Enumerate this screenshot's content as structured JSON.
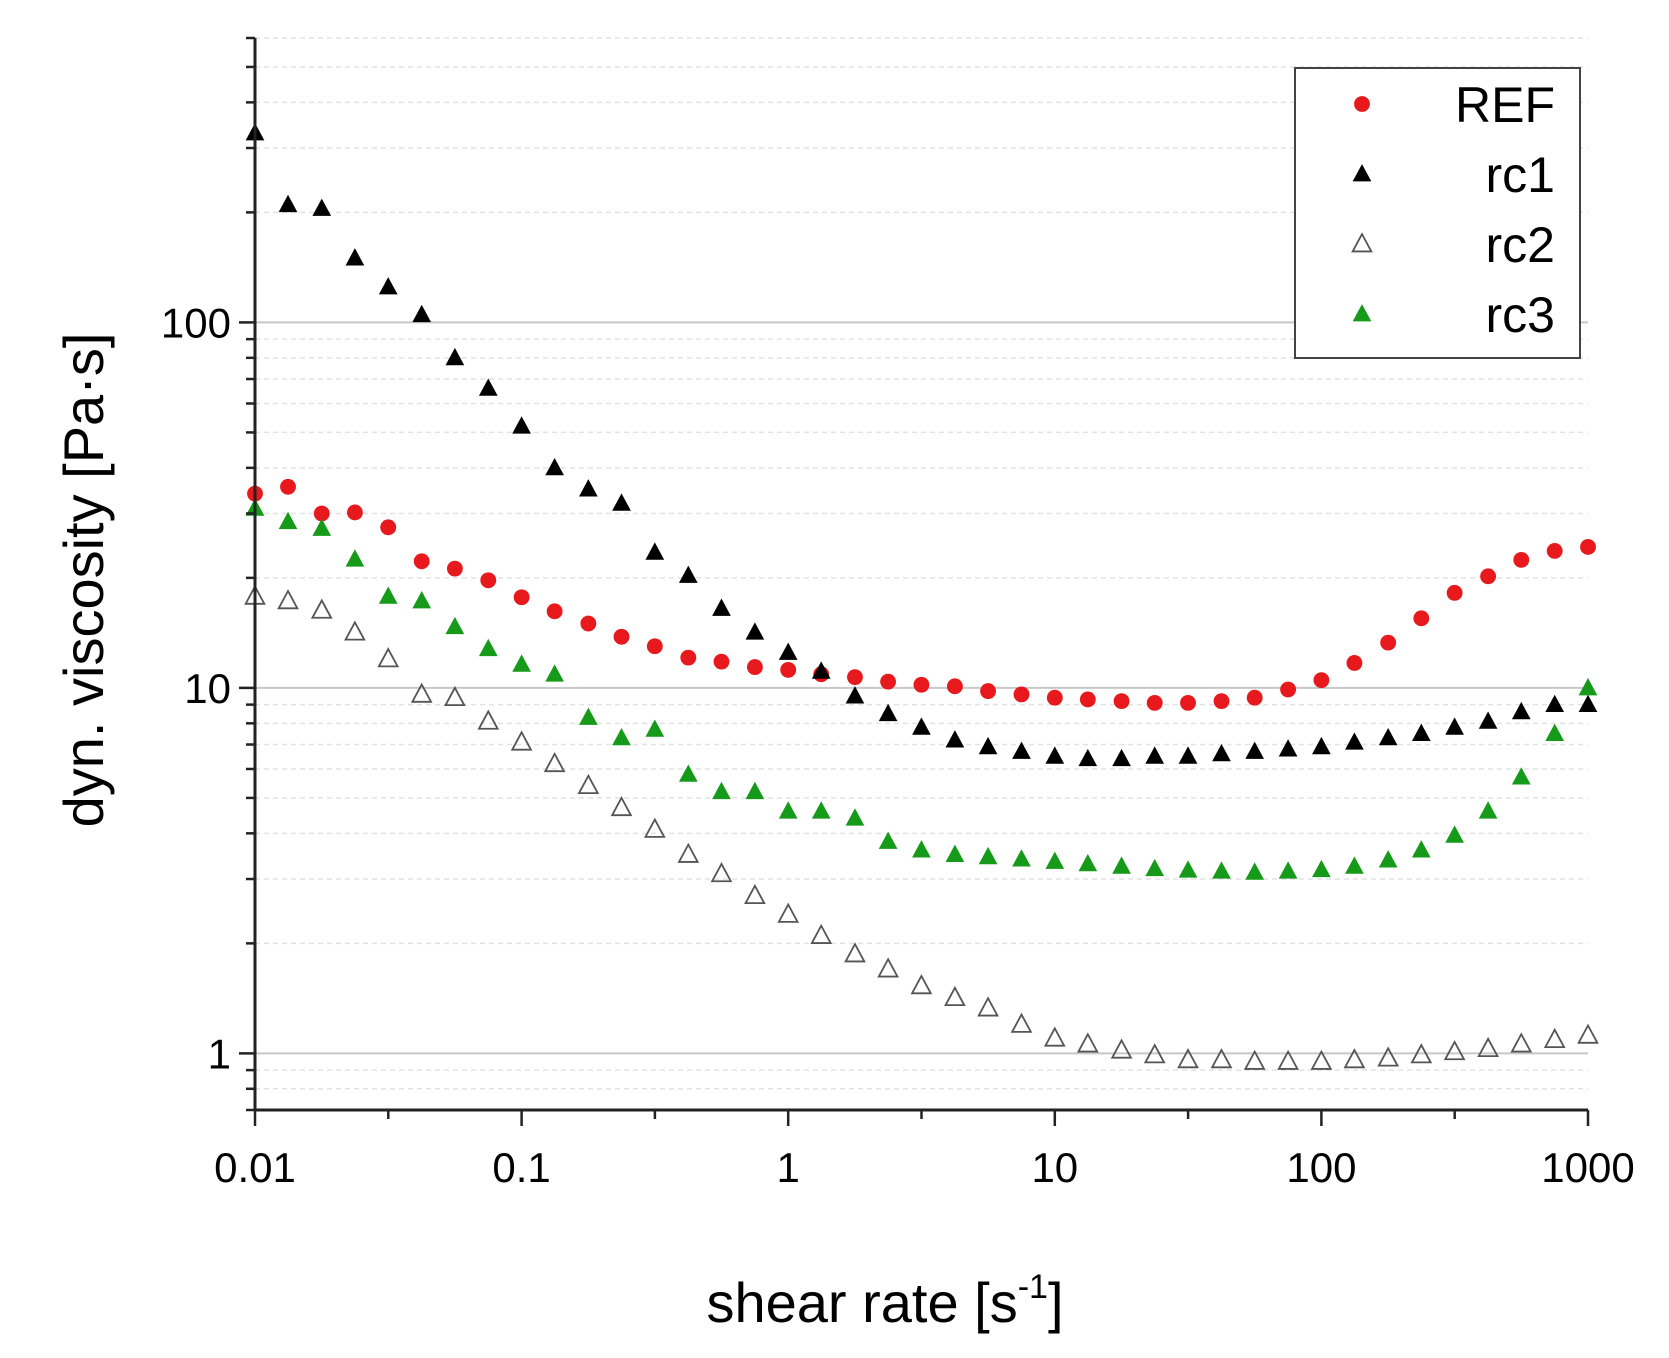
{
  "chart_data": {
    "type": "scatter",
    "xscale": "log",
    "yscale": "log",
    "xlim": [
      0.01,
      1000
    ],
    "ylim": [
      0.7,
      600
    ],
    "xlabel": "shear rate [s",
    "xlabel_sup": "-1",
    "xlabel_end": "]",
    "ylabel": "dyn. viscosity [Pa·s]",
    "xticks": [
      {
        "value": 0.01,
        "label": "0.01"
      },
      {
        "value": 0.1,
        "label": "0.1"
      },
      {
        "value": 1,
        "label": "1"
      },
      {
        "value": 10,
        "label": "10"
      },
      {
        "value": 100,
        "label": "100"
      },
      {
        "value": 1000,
        "label": "1000"
      }
    ],
    "yticks": [
      {
        "value": 1,
        "label": "1"
      },
      {
        "value": 10,
        "label": "10"
      },
      {
        "value": 100,
        "label": "100"
      }
    ],
    "grid": true,
    "legend_position": "top-right",
    "x": [
      0.01,
      0.0133,
      0.0178,
      0.0237,
      0.0316,
      0.0422,
      0.0562,
      0.075,
      0.1,
      0.133,
      0.178,
      0.237,
      0.316,
      0.422,
      0.562,
      0.75,
      1,
      1.33,
      1.78,
      2.37,
      3.16,
      4.22,
      5.62,
      7.5,
      10,
      13.3,
      17.8,
      23.7,
      31.6,
      42.2,
      56.2,
      75,
      100,
      133,
      178,
      237,
      316,
      422,
      562,
      750,
      1000
    ],
    "series": [
      {
        "name": "REF",
        "marker": "circle-filled",
        "color": "#e8191c",
        "values": [
          34,
          35.5,
          30,
          30.2,
          27.5,
          22.2,
          21.2,
          19.7,
          17.7,
          16.2,
          15,
          13.8,
          13,
          12.1,
          11.8,
          11.4,
          11.2,
          10.9,
          10.7,
          10.4,
          10.2,
          10.1,
          9.8,
          9.6,
          9.4,
          9.3,
          9.2,
          9.1,
          9.1,
          9.2,
          9.4,
          9.9,
          10.5,
          11.7,
          13.3,
          15.5,
          18.2,
          20.2,
          22.4,
          23.7,
          24.3
        ]
      },
      {
        "name": "rc1",
        "marker": "triangle-filled",
        "color": "#000000",
        "values": [
          330,
          210,
          205,
          150,
          125,
          105,
          80,
          66,
          52,
          40,
          35,
          32,
          23.5,
          20.3,
          16.5,
          14.2,
          12.5,
          11.1,
          9.5,
          8.5,
          7.8,
          7.2,
          6.9,
          6.7,
          6.5,
          6.4,
          6.4,
          6.5,
          6.5,
          6.6,
          6.7,
          6.8,
          6.9,
          7.1,
          7.3,
          7.5,
          7.8,
          8.1,
          8.6,
          9,
          9
        ]
      },
      {
        "name": "rc2",
        "marker": "triangle-open",
        "color": "#555555",
        "values": [
          17.8,
          17.3,
          16.3,
          14.2,
          12,
          9.6,
          9.4,
          8.1,
          7.1,
          6.2,
          5.4,
          4.7,
          4.1,
          3.5,
          3.1,
          2.7,
          2.4,
          2.1,
          1.87,
          1.7,
          1.53,
          1.42,
          1.33,
          1.2,
          1.1,
          1.06,
          1.02,
          0.99,
          0.96,
          0.96,
          0.95,
          0.95,
          0.95,
          0.96,
          0.97,
          0.99,
          1.01,
          1.03,
          1.06,
          1.09,
          1.12
        ]
      },
      {
        "name": "rc3",
        "marker": "triangle-filled",
        "color": "#169a19",
        "values": [
          31,
          28.5,
          27.3,
          22.5,
          17.8,
          17.3,
          14.7,
          12.8,
          11.6,
          10.9,
          8.3,
          7.3,
          7.7,
          5.8,
          5.2,
          5.2,
          4.6,
          4.6,
          4.4,
          3.8,
          3.6,
          3.5,
          3.45,
          3.4,
          3.35,
          3.3,
          3.25,
          3.2,
          3.17,
          3.15,
          3.13,
          3.15,
          3.18,
          3.25,
          3.38,
          3.6,
          3.95,
          4.6,
          5.7,
          7.5,
          10
        ]
      }
    ]
  }
}
